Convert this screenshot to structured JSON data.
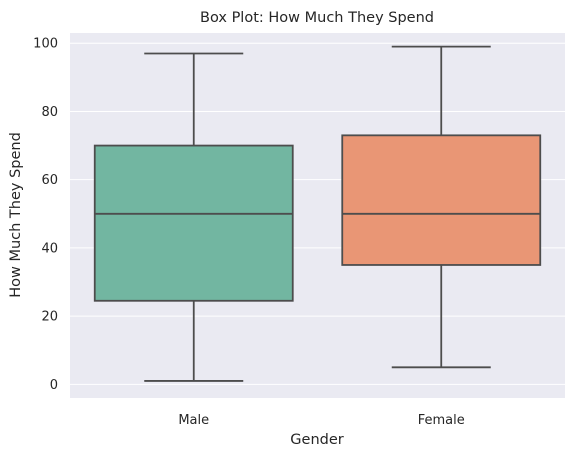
{
  "chart_data": {
    "type": "box",
    "title": "Box Plot: How Much They Spend",
    "xlabel": "Gender",
    "ylabel": "How Much They Spend",
    "categories": [
      "Male",
      "Female"
    ],
    "ylim": [
      -4,
      103
    ],
    "yticks": [
      0,
      20,
      40,
      60,
      80,
      100
    ],
    "grid": true,
    "boxes": [
      {
        "category": "Male",
        "whisker_low": 1,
        "q1": 24.5,
        "median": 50,
        "q3": 70,
        "whisker_high": 97,
        "color": "#72b6a1"
      },
      {
        "category": "Female",
        "whisker_low": 5,
        "q1": 35,
        "median": 50,
        "q3": 73,
        "whisker_high": 99,
        "color": "#e99675"
      }
    ],
    "colors": {
      "background": "#eaeaf2",
      "grid": "#ffffff",
      "line": "#4d4d4d"
    }
  }
}
